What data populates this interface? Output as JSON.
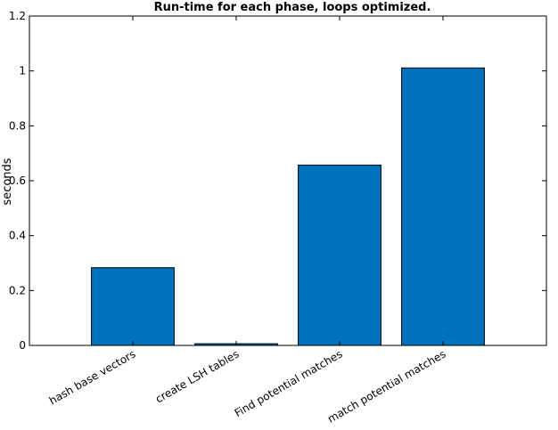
{
  "chart_data": {
    "type": "bar",
    "title": "Run-time for each phase, loops optimized.",
    "ylabel": "seconds",
    "xlabel": "",
    "categories": [
      "hash base vectors",
      "create LSH tables",
      "Find potential matches",
      "match potential matches"
    ],
    "values": [
      0.283,
      0.006,
      0.657,
      1.011
    ],
    "ylim": [
      0,
      1.2
    ],
    "yticks": [
      0,
      0.2,
      0.4,
      0.6,
      0.8,
      1,
      1.2
    ],
    "ytick_labels": [
      "0",
      "0.2",
      "0.4",
      "0.6",
      "0.8",
      "1",
      "1.2"
    ],
    "grid": false,
    "bar_color": "#0072bd",
    "bar_edge_color": "#000000"
  }
}
